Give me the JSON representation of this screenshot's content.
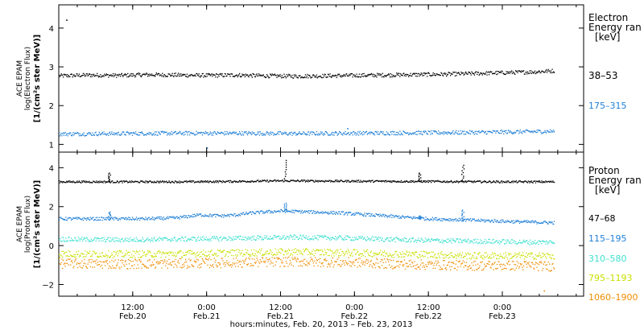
{
  "chart_data": [
    {
      "type": "scatter",
      "ylabel": [
        "ACE EPAM",
        "log(Electron Flux)",
        "[1/(cm²s ster MeV)]"
      ],
      "legend_title": [
        "Electron",
        "Energy ran",
        "[keV]"
      ],
      "ylim": [
        0.8,
        4.6
      ],
      "yticks": [
        "1",
        "2",
        "3",
        "4"
      ],
      "series": [
        {
          "name": "38–53",
          "color": "#000000",
          "points": [
            [
              0.0,
              2.78
            ],
            [
              0.2,
              2.8
            ],
            [
              0.4,
              2.79
            ],
            [
              0.6,
              2.81
            ],
            [
              0.8,
              2.8
            ],
            [
              1.0,
              2.79
            ],
            [
              1.2,
              2.8
            ],
            [
              1.4,
              2.78
            ],
            [
              1.6,
              2.77
            ],
            [
              1.8,
              2.78
            ],
            [
              2.0,
              2.79
            ],
            [
              2.2,
              2.8
            ],
            [
              2.4,
              2.81
            ],
            [
              2.6,
              2.82
            ],
            [
              2.8,
              2.84
            ],
            [
              3.0,
              2.86
            ],
            [
              3.2,
              2.88
            ],
            [
              3.35,
              2.91
            ]
          ],
          "jitter": 0.05,
          "outliers": [
            [
              0.05,
              4.22
            ]
          ]
        },
        {
          "name": "175–315",
          "color": "#1f7fd6",
          "points": [
            [
              0.0,
              1.28
            ],
            [
              0.4,
              1.29
            ],
            [
              0.8,
              1.3
            ],
            [
              1.2,
              1.3
            ],
            [
              1.6,
              1.29
            ],
            [
              2.0,
              1.3
            ],
            [
              2.4,
              1.31
            ],
            [
              2.8,
              1.32
            ],
            [
              3.2,
              1.34
            ],
            [
              3.35,
              1.35
            ]
          ],
          "jitter": 0.05,
          "outliers": [
            [
              1.0,
              0.92
            ],
            [
              1.95,
              1.42
            ]
          ]
        }
      ]
    },
    {
      "type": "scatter",
      "ylabel": [
        "ACE EPAM",
        "log(Proton Flux)",
        "[1/(cm²s ster MeV)]"
      ],
      "legend_title": [
        "Proton",
        "Energy ran",
        "[keV]"
      ],
      "ylim": [
        -2.6,
        4.8
      ],
      "yticks": [
        "−2",
        "0",
        "2",
        "4"
      ],
      "xlabel": "hours:minutes, Feb. 20, 2013 – Feb. 23, 2013",
      "xlim": [
        0.0,
        3.55
      ],
      "xticks": [
        {
          "x": 0.5,
          "time": "12:00",
          "date": "Feb.20"
        },
        {
          "x": 1.0,
          "time": "0:00",
          "date": "Feb.21"
        },
        {
          "x": 1.5,
          "time": "12:00",
          "date": "Feb.21"
        },
        {
          "x": 2.0,
          "time": "0:00",
          "date": "Feb.22"
        },
        {
          "x": 2.5,
          "time": "12:00",
          "date": "Feb.22"
        },
        {
          "x": 3.0,
          "time": "0:00",
          "date": "Feb.23"
        }
      ],
      "series": [
        {
          "name": "47–68",
          "color": "#000000",
          "points": [
            [
              0.0,
              3.3
            ],
            [
              0.3,
              3.3
            ],
            [
              0.6,
              3.3
            ],
            [
              0.9,
              3.3
            ],
            [
              1.2,
              3.32
            ],
            [
              1.5,
              3.35
            ],
            [
              1.8,
              3.34
            ],
            [
              2.1,
              3.33
            ],
            [
              2.4,
              3.32
            ],
            [
              2.7,
              3.31
            ],
            [
              3.0,
              3.3
            ],
            [
              3.35,
              3.3
            ]
          ],
          "jitter": 0.05,
          "spikes": [
            [
              0.34,
              3.75
            ],
            [
              1.53,
              4.4
            ],
            [
              2.44,
              3.75
            ],
            [
              2.73,
              4.15
            ]
          ]
        },
        {
          "name": "115–195",
          "color": "#1f7fd6",
          "points": [
            [
              0.0,
              1.4
            ],
            [
              0.3,
              1.4
            ],
            [
              0.6,
              1.4
            ],
            [
              0.8,
              1.45
            ],
            [
              0.95,
              1.6
            ],
            [
              1.1,
              1.55
            ],
            [
              1.2,
              1.6
            ],
            [
              1.3,
              1.7
            ],
            [
              1.5,
              1.8
            ],
            [
              1.7,
              1.75
            ],
            [
              1.9,
              1.7
            ],
            [
              2.1,
              1.6
            ],
            [
              2.3,
              1.5
            ],
            [
              2.5,
              1.4
            ],
            [
              2.7,
              1.35
            ],
            [
              2.9,
              1.3
            ],
            [
              3.1,
              1.25
            ],
            [
              3.35,
              1.2
            ]
          ],
          "jitter": 0.08,
          "spikes": [
            [
              0.34,
              1.75
            ],
            [
              1.53,
              2.2
            ],
            [
              2.44,
              1.55
            ],
            [
              2.73,
              1.85
            ]
          ]
        },
        {
          "name": "310–580",
          "color": "#3fe0d0",
          "points": [
            [
              0.0,
              0.35
            ],
            [
              0.4,
              0.32
            ],
            [
              0.8,
              0.35
            ],
            [
              1.2,
              0.4
            ],
            [
              1.6,
              0.45
            ],
            [
              2.0,
              0.4
            ],
            [
              2.4,
              0.3
            ],
            [
              2.8,
              0.25
            ],
            [
              3.2,
              0.2
            ],
            [
              3.35,
              0.2
            ]
          ],
          "jitter": 0.12
        },
        {
          "name": "795–1193",
          "color": "#c8e000",
          "points": [
            [
              0.0,
              -0.4
            ],
            [
              0.4,
              -0.42
            ],
            [
              0.8,
              -0.4
            ],
            [
              1.2,
              -0.35
            ],
            [
              1.6,
              -0.3
            ],
            [
              2.0,
              -0.35
            ],
            [
              2.4,
              -0.42
            ],
            [
              2.8,
              -0.5
            ],
            [
              3.2,
              -0.5
            ],
            [
              3.35,
              -0.5
            ]
          ],
          "jitter": 0.18
        },
        {
          "name": "1060–1900",
          "color": "#f08c00",
          "points": [
            [
              0.0,
              -0.9
            ],
            [
              0.4,
              -0.92
            ],
            [
              0.8,
              -0.9
            ],
            [
              1.2,
              -0.85
            ],
            [
              1.6,
              -0.8
            ],
            [
              2.0,
              -0.85
            ],
            [
              2.4,
              -0.95
            ],
            [
              2.8,
              -1.0
            ],
            [
              3.2,
              -1.0
            ],
            [
              3.35,
              -1.05
            ]
          ],
          "jitter": 0.25,
          "outliers": [
            [
              3.28,
              -2.3
            ]
          ]
        }
      ]
    }
  ]
}
